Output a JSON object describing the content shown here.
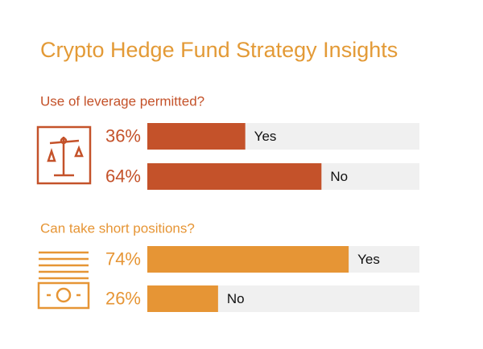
{
  "title": "Crypto Hedge Fund Strategy Insights",
  "chart_data": [
    {
      "type": "bar",
      "orientation": "horizontal",
      "title": "Use of leverage permitted?",
      "categories": [
        "Yes",
        "No"
      ],
      "values": [
        36,
        64
      ],
      "value_labels": [
        "36%",
        "64%"
      ],
      "color": "#c4522a",
      "xlim": [
        0,
        100
      ]
    },
    {
      "type": "bar",
      "orientation": "horizontal",
      "title": "Can take short positions?",
      "categories": [
        "Yes",
        "No"
      ],
      "values": [
        74,
        26
      ],
      "value_labels": [
        "74%",
        "26%"
      ],
      "color": "#e69535",
      "xlim": [
        0,
        100
      ]
    }
  ]
}
